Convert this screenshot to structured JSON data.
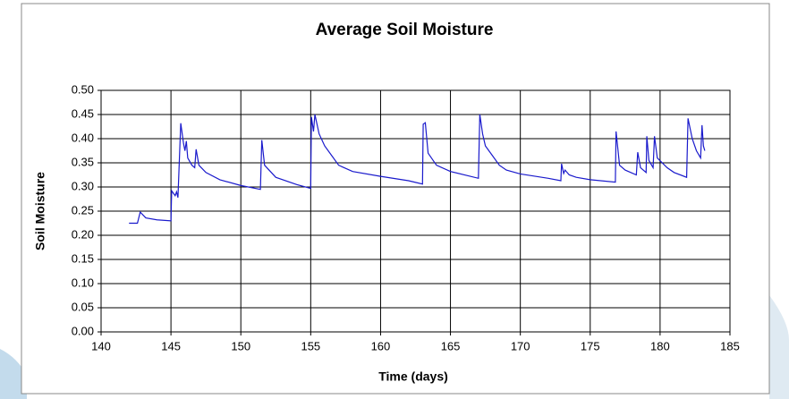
{
  "chart_data": {
    "type": "line",
    "title": "Average Soil Moisture",
    "x_label": "Time (days)",
    "y_label": "Soil Moisture",
    "color": "#1a1acc",
    "grid": true,
    "xlim": [
      140,
      185
    ],
    "xticks": [
      140,
      145,
      150,
      155,
      160,
      165,
      170,
      175,
      180,
      185
    ],
    "ylim": [
      0,
      0.5
    ],
    "yticks": [
      {
        "value": 0,
        "label": "0.00"
      },
      {
        "value": 0.05,
        "label": "0.05"
      },
      {
        "value": 0.1,
        "label": "0.10"
      },
      {
        "value": 0.15,
        "label": "0.15"
      },
      {
        "value": 0.2,
        "label": "0.20"
      },
      {
        "value": 0.25,
        "label": "0.25"
      },
      {
        "value": 0.3,
        "label": "0.30"
      },
      {
        "value": 0.35,
        "label": "0.35"
      },
      {
        "value": 0.4,
        "label": "0.40"
      },
      {
        "value": 0.45,
        "label": "0.45"
      },
      {
        "value": 0.5,
        "label": "0.50"
      }
    ],
    "x": [
      142.0,
      142.6,
      142.8,
      143.2,
      144.0,
      145.0,
      145.05,
      145.3,
      145.4,
      145.5,
      145.7,
      145.9,
      146.0,
      146.1,
      146.2,
      146.5,
      146.7,
      146.8,
      147.0,
      147.5,
      148.5,
      150.0,
      151.4,
      151.5,
      151.7,
      152.5,
      154.0,
      155.0,
      155.05,
      155.2,
      155.3,
      155.6,
      156.0,
      156.5,
      157.0,
      158.0,
      160.0,
      162.0,
      163.0,
      163.05,
      163.2,
      163.4,
      164.0,
      165.0,
      167.0,
      167.1,
      167.3,
      167.5,
      168.0,
      168.5,
      169.0,
      170.0,
      172.0,
      172.9,
      172.95,
      173.1,
      173.2,
      173.5,
      174.0,
      175.0,
      176.8,
      176.85,
      177.1,
      177.5,
      178.3,
      178.4,
      178.6,
      179.0,
      179.05,
      179.2,
      179.5,
      179.6,
      179.8,
      180.5,
      181.0,
      181.9,
      182.0,
      182.3,
      182.6,
      182.9,
      183.0,
      183.1,
      183.2
    ],
    "values": [
      0.225,
      0.225,
      0.248,
      0.236,
      0.232,
      0.23,
      0.292,
      0.282,
      0.29,
      0.278,
      0.432,
      0.39,
      0.375,
      0.395,
      0.36,
      0.345,
      0.34,
      0.378,
      0.345,
      0.33,
      0.315,
      0.303,
      0.295,
      0.397,
      0.345,
      0.32,
      0.305,
      0.297,
      0.445,
      0.415,
      0.45,
      0.41,
      0.385,
      0.365,
      0.345,
      0.332,
      0.322,
      0.313,
      0.306,
      0.43,
      0.433,
      0.37,
      0.345,
      0.332,
      0.318,
      0.45,
      0.41,
      0.385,
      0.365,
      0.345,
      0.335,
      0.327,
      0.318,
      0.313,
      0.348,
      0.328,
      0.335,
      0.325,
      0.32,
      0.315,
      0.31,
      0.415,
      0.345,
      0.335,
      0.325,
      0.372,
      0.34,
      0.33,
      0.405,
      0.355,
      0.34,
      0.405,
      0.36,
      0.34,
      0.33,
      0.32,
      0.442,
      0.4,
      0.375,
      0.36,
      0.428,
      0.385,
      0.375
    ]
  }
}
